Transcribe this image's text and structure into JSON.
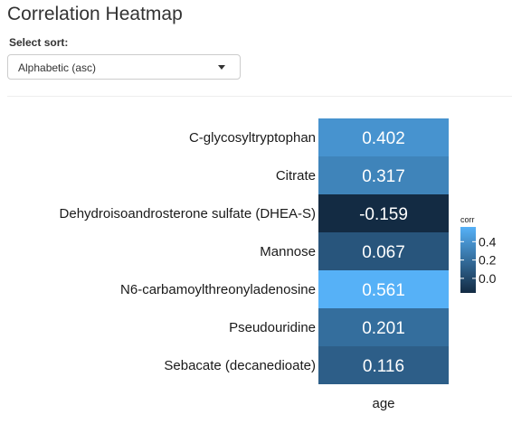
{
  "page": {
    "title": "Correlation Heatmap"
  },
  "sort": {
    "label": "Select sort:",
    "selected": "Alphabetic (asc)"
  },
  "chart_data": {
    "type": "heatmap",
    "x_categories": [
      "age"
    ],
    "y_categories": [
      "C-glycosyltryptophan",
      "Citrate",
      "Dehydroisoandrosterone sulfate (DHEA-S)",
      "Mannose",
      "N6-carbamoylthreonyladenosine",
      "Pseudouridine",
      "Sebacate (decanedioate)"
    ],
    "values": [
      0.402,
      0.317,
      -0.159,
      0.067,
      0.561,
      0.201,
      0.116
    ],
    "value_labels": [
      "0.402",
      "0.317",
      "-0.159",
      "0.067",
      "0.561",
      "0.201",
      "0.116"
    ],
    "legend": {
      "title": "corr",
      "ticks": [
        0.4,
        0.2,
        0.0
      ],
      "tick_labels": [
        "0.4",
        "0.2",
        "0.0"
      ],
      "range": [
        -0.159,
        0.561
      ],
      "low_color": "#132B43",
      "high_color": "#56B1F7"
    },
    "grid": false
  }
}
